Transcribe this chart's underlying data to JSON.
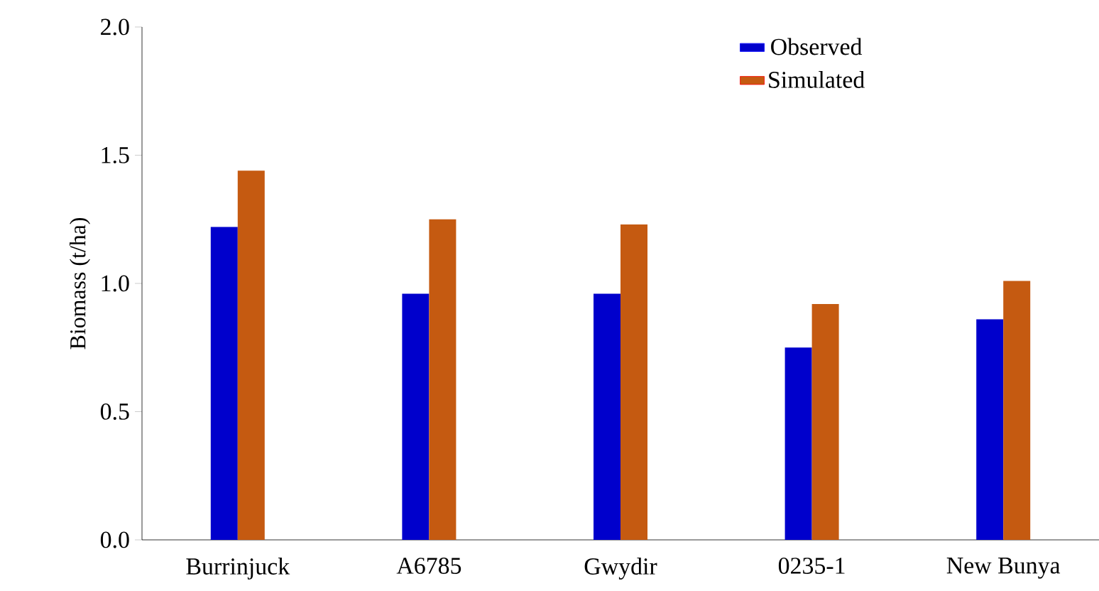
{
  "chart_data": {
    "type": "bar",
    "ylabel": "Biomass (t/ha)",
    "categories": [
      "Burrinjuck",
      "A6785",
      "Gwydir",
      "0235-1",
      "New Bunya"
    ],
    "series": [
      {
        "name": "Observed",
        "color": "#0000cc",
        "values": [
          1.22,
          0.96,
          0.96,
          0.75,
          0.86
        ]
      },
      {
        "name": "Simulated",
        "color": "#c55a11",
        "values": [
          1.44,
          1.25,
          1.23,
          0.92,
          1.01
        ]
      }
    ],
    "ylim": [
      0,
      2
    ],
    "yticks": [
      {
        "value": 0,
        "label": "0.0"
      },
      0.5,
      {
        "value": 1,
        "label": "1.0"
      },
      1.5,
      {
        "value": 2,
        "label": "2.0"
      }
    ],
    "legend": "top right"
  }
}
